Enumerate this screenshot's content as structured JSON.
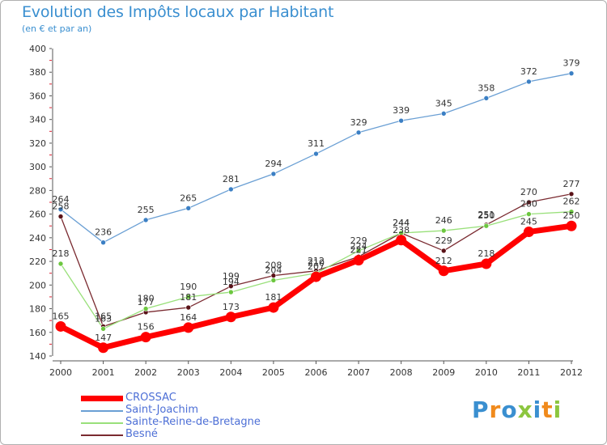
{
  "chart_data": {
    "type": "line",
    "title": "Evolution des Impôts locaux par Habitant",
    "subtitle": "(en € et par an)",
    "x": [
      "2000",
      "2001",
      "2002",
      "2003",
      "2004",
      "2005",
      "2006",
      "2007",
      "2008",
      "2009",
      "2010",
      "2011",
      "2012"
    ],
    "ylim": [
      140,
      400
    ],
    "yticks": [
      140,
      160,
      180,
      200,
      220,
      240,
      260,
      280,
      300,
      320,
      340,
      360,
      380,
      400
    ],
    "grid": false,
    "legend_position": "bottom-left",
    "series": [
      {
        "name": "CROSSAC",
        "color": "#ff0000",
        "values": [
          165,
          147,
          156,
          164,
          173,
          181,
          207,
          221,
          238,
          212,
          218,
          245,
          250
        ]
      },
      {
        "name": "Saint-Joachim",
        "color": "#6a9fd4",
        "values": [
          264,
          236,
          255,
          265,
          281,
          294,
          311,
          329,
          339,
          345,
          358,
          372,
          379
        ]
      },
      {
        "name": "Sainte-Reine-de-Bretagne",
        "color": "#99e07a",
        "values": [
          218,
          163,
          180,
          190,
          194,
          204,
          210,
          229,
          244,
          246,
          250,
          260,
          262
        ]
      },
      {
        "name": "Besné",
        "color": "#7a2a30",
        "values": [
          258,
          165,
          177,
          181,
          199,
          208,
          212,
          224,
          244,
          229,
          251,
          270,
          277
        ]
      }
    ]
  },
  "logo": {
    "text": "Proxiti",
    "colors": [
      "#3a8fd0",
      "#f08a1c",
      "#3a8fd0",
      "#8cc63f",
      "#3a8fd0",
      "#f08a1c",
      "#8cc63f"
    ]
  }
}
